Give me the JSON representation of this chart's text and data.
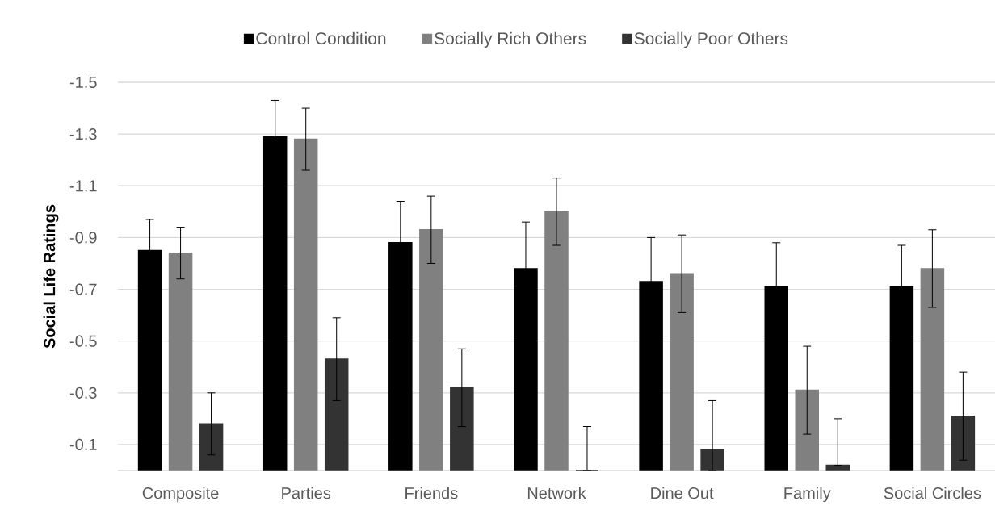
{
  "chart_data": {
    "type": "bar",
    "ylabel": "Social Life Ratings",
    "categories": [
      "Composite",
      "Parties",
      "Friends",
      "Network",
      "Dine Out",
      "Family",
      "Social Circles"
    ],
    "ylim": [
      0,
      -1.5
    ],
    "yticks": [
      -1.5,
      -1.3,
      -1.1,
      -0.9,
      -0.7,
      -0.5,
      -0.3,
      -0.1
    ],
    "grid": "y",
    "legend": "top",
    "series": [
      {
        "name": "Control Condition",
        "color": "#000000",
        "values": [
          -0.85,
          -1.29,
          -0.88,
          -0.78,
          -0.73,
          -0.71,
          -0.71
        ],
        "errors": [
          0.12,
          0.14,
          0.16,
          0.18,
          0.17,
          0.17,
          0.16
        ]
      },
      {
        "name": "Socially Rich Others",
        "color": "#808080",
        "values": [
          -0.84,
          -1.28,
          -0.93,
          -1.0,
          -0.76,
          -0.31,
          -0.78
        ],
        "errors": [
          0.1,
          0.12,
          0.13,
          0.13,
          0.15,
          0.17,
          0.15
        ]
      },
      {
        "name": "Socially Poor Others",
        "color": "#333333",
        "values": [
          -0.18,
          -0.43,
          -0.32,
          0,
          -0.08,
          -0.02,
          -0.21
        ],
        "errors": [
          0.12,
          0.16,
          0.15,
          [
            -0.17,
            0
          ],
          [
            -0.27,
            0
          ],
          [
            -0.2,
            -0.02
          ],
          0.17
        ]
      }
    ]
  }
}
